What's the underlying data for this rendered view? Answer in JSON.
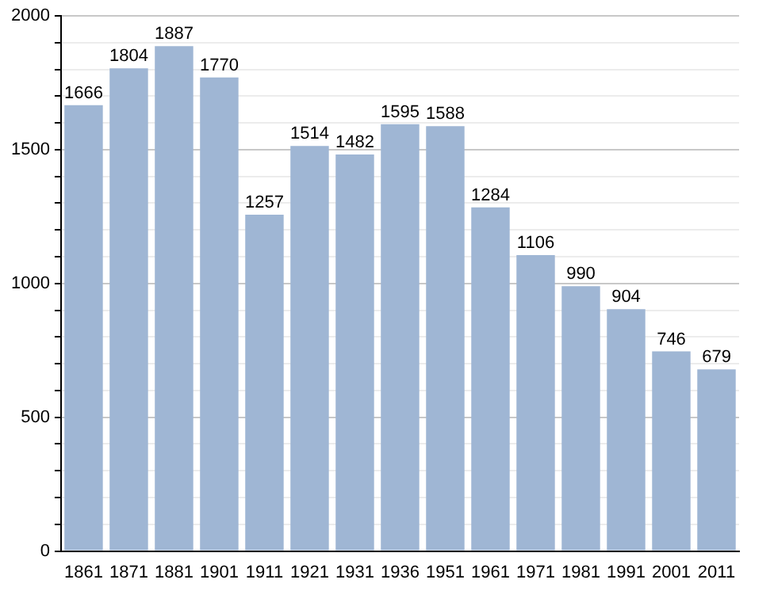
{
  "chart_data": {
    "type": "bar",
    "categories": [
      "1861",
      "1871",
      "1881",
      "1901",
      "1911",
      "1921",
      "1931",
      "1936",
      "1951",
      "1961",
      "1971",
      "1981",
      "1991",
      "2001",
      "2011"
    ],
    "values": [
      1666,
      1804,
      1887,
      1770,
      1257,
      1514,
      1482,
      1595,
      1588,
      1284,
      1106,
      990,
      904,
      746,
      679
    ],
    "color": "#9fb6d4",
    "ylim": [
      0,
      2000
    ],
    "yticks": [
      0,
      {
        "value": 100,
        "label": null
      },
      {
        "value": 200,
        "label": null
      },
      {
        "value": 300,
        "label": null
      },
      {
        "value": 400,
        "label": null
      },
      500,
      {
        "value": 600,
        "label": null
      },
      {
        "value": 700,
        "label": null
      },
      {
        "value": 800,
        "label": null
      },
      {
        "value": 900,
        "label": null
      },
      1000,
      {
        "value": 1100,
        "label": null
      },
      {
        "value": 1200,
        "label": null
      },
      {
        "value": 1300,
        "label": null
      },
      {
        "value": 1400,
        "label": null
      },
      1500,
      {
        "value": 1600,
        "label": null
      },
      {
        "value": 1700,
        "label": null
      },
      {
        "value": 1800,
        "label": null
      },
      {
        "value": 1900,
        "label": null
      },
      2000
    ],
    "grid": "y",
    "data_labels": true
  }
}
